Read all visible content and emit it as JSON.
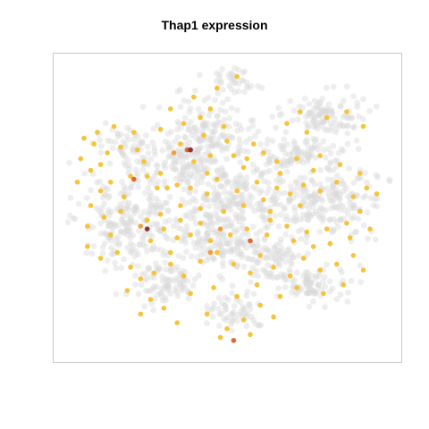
{
  "chart_data": {
    "type": "scatter",
    "title": "Thap1 expression",
    "xlabel": "",
    "ylabel": "",
    "grid": false,
    "legend": "none",
    "axes_shown": false,
    "colors": {
      "background_cells": "#d9d9d9",
      "low": "#f6c02e",
      "mid": "#f29a2c",
      "high": "#d8622a",
      "max": "#8b2a2a",
      "frame": "#c8c8c8"
    },
    "background_regions": [
      {
        "cx": 0.53,
        "cy": 0.86,
        "rx": 0.08,
        "ry": 0.06,
        "n": 60
      },
      {
        "cx": 0.31,
        "cy": 0.76,
        "rx": 0.09,
        "ry": 0.07,
        "n": 90
      },
      {
        "cx": 0.75,
        "cy": 0.77,
        "rx": 0.1,
        "ry": 0.06,
        "n": 90
      },
      {
        "cx": 0.47,
        "cy": 0.63,
        "rx": 0.12,
        "ry": 0.06,
        "n": 110
      },
      {
        "cx": 0.2,
        "cy": 0.55,
        "rx": 0.14,
        "ry": 0.14,
        "n": 220
      },
      {
        "cx": 0.5,
        "cy": 0.48,
        "rx": 0.2,
        "ry": 0.12,
        "n": 260
      },
      {
        "cx": 0.8,
        "cy": 0.48,
        "rx": 0.16,
        "ry": 0.12,
        "n": 200
      },
      {
        "cx": 0.45,
        "cy": 0.25,
        "rx": 0.13,
        "ry": 0.09,
        "n": 150
      },
      {
        "cx": 0.8,
        "cy": 0.19,
        "rx": 0.1,
        "ry": 0.07,
        "n": 110
      },
      {
        "cx": 0.7,
        "cy": 0.32,
        "rx": 0.12,
        "ry": 0.06,
        "n": 90
      },
      {
        "cx": 0.52,
        "cy": 0.08,
        "rx": 0.07,
        "ry": 0.04,
        "n": 40
      },
      {
        "cx": 0.38,
        "cy": 0.36,
        "rx": 0.1,
        "ry": 0.06,
        "n": 80
      },
      {
        "cx": 0.2,
        "cy": 0.3,
        "rx": 0.08,
        "ry": 0.08,
        "n": 70
      },
      {
        "cx": 0.62,
        "cy": 0.68,
        "rx": 0.1,
        "ry": 0.07,
        "n": 90
      }
    ],
    "expressing_cells": [
      [
        0.53,
        0.06,
        1
      ],
      [
        0.47,
        0.1,
        1
      ],
      [
        0.4,
        0.13,
        1
      ],
      [
        0.33,
        0.17,
        1
      ],
      [
        0.42,
        0.2,
        1
      ],
      [
        0.49,
        0.23,
        1
      ],
      [
        0.43,
        0.26,
        1
      ],
      [
        0.36,
        0.29,
        1
      ],
      [
        0.38,
        0.31,
        3
      ],
      [
        0.39,
        0.31,
        4
      ],
      [
        0.34,
        0.32,
        2
      ],
      [
        0.45,
        0.33,
        1
      ],
      [
        0.52,
        0.33,
        1
      ],
      [
        0.56,
        0.34,
        1
      ],
      [
        0.61,
        0.32,
        1
      ],
      [
        0.65,
        0.35,
        1
      ],
      [
        0.71,
        0.34,
        1
      ],
      [
        0.78,
        0.33,
        1
      ],
      [
        0.74,
        0.25,
        1
      ],
      [
        0.8,
        0.2,
        1
      ],
      [
        0.86,
        0.18,
        1
      ],
      [
        0.91,
        0.23,
        1
      ],
      [
        0.72,
        0.18,
        1
      ],
      [
        0.68,
        0.22,
        1
      ],
      [
        0.07,
        0.27,
        1
      ],
      [
        0.1,
        0.29,
        1
      ],
      [
        0.14,
        0.32,
        1
      ],
      [
        0.18,
        0.3,
        1
      ],
      [
        0.23,
        0.31,
        1
      ],
      [
        0.06,
        0.34,
        1
      ],
      [
        0.09,
        0.38,
        1
      ],
      [
        0.12,
        0.36,
        1
      ],
      [
        0.15,
        0.42,
        1
      ],
      [
        0.21,
        0.4,
        1
      ],
      [
        0.22,
        0.41,
        3
      ],
      [
        0.26,
        0.4,
        1
      ],
      [
        0.29,
        0.44,
        1
      ],
      [
        0.32,
        0.44,
        1
      ],
      [
        0.35,
        0.43,
        1
      ],
      [
        0.39,
        0.44,
        1
      ],
      [
        0.44,
        0.46,
        1
      ],
      [
        0.47,
        0.41,
        1
      ],
      [
        0.53,
        0.45,
        1
      ],
      [
        0.59,
        0.42,
        1
      ],
      [
        0.65,
        0.44,
        1
      ],
      [
        0.69,
        0.46,
        1
      ],
      [
        0.73,
        0.43,
        1
      ],
      [
        0.78,
        0.45,
        1
      ],
      [
        0.83,
        0.42,
        1
      ],
      [
        0.88,
        0.47,
        1
      ],
      [
        0.92,
        0.44,
        1
      ],
      [
        0.95,
        0.46,
        1
      ],
      [
        0.61,
        0.48,
        1
      ],
      [
        0.55,
        0.5,
        1
      ],
      [
        0.49,
        0.52,
        1
      ],
      [
        0.42,
        0.51,
        1
      ],
      [
        0.36,
        0.5,
        1
      ],
      [
        0.3,
        0.53,
        1
      ],
      [
        0.26,
        0.55,
        1
      ],
      [
        0.26,
        0.58,
        4
      ],
      [
        0.24,
        0.57,
        2
      ],
      [
        0.31,
        0.58,
        1
      ],
      [
        0.35,
        0.61,
        1
      ],
      [
        0.39,
        0.6,
        1
      ],
      [
        0.45,
        0.62,
        1
      ],
      [
        0.51,
        0.6,
        1
      ],
      [
        0.56,
        0.58,
        1
      ],
      [
        0.62,
        0.6,
        1
      ],
      [
        0.68,
        0.57,
        1
      ],
      [
        0.74,
        0.59,
        1
      ],
      [
        0.8,
        0.58,
        1
      ],
      [
        0.86,
        0.56,
        1
      ],
      [
        0.9,
        0.52,
        1
      ],
      [
        0.09,
        0.5,
        1
      ],
      [
        0.13,
        0.54,
        1
      ],
      [
        0.18,
        0.52,
        1
      ],
      [
        0.08,
        0.64,
        1
      ],
      [
        0.12,
        0.68,
        1
      ],
      [
        0.17,
        0.66,
        1
      ],
      [
        0.21,
        0.71,
        1
      ],
      [
        0.24,
        0.75,
        1
      ],
      [
        0.28,
        0.73,
        1
      ],
      [
        0.33,
        0.7,
        1
      ],
      [
        0.37,
        0.74,
        1
      ],
      [
        0.42,
        0.69,
        1
      ],
      [
        0.47,
        0.66,
        1
      ],
      [
        0.52,
        0.7,
        1
      ],
      [
        0.57,
        0.73,
        1
      ],
      [
        0.6,
        0.67,
        1
      ],
      [
        0.64,
        0.71,
        1
      ],
      [
        0.69,
        0.74,
        1
      ],
      [
        0.73,
        0.68,
        1
      ],
      [
        0.78,
        0.72,
        1
      ],
      [
        0.83,
        0.7,
        1
      ],
      [
        0.88,
        0.67,
        1
      ],
      [
        0.91,
        0.72,
        1
      ],
      [
        0.85,
        0.77,
        1
      ],
      [
        0.79,
        0.8,
        1
      ],
      [
        0.71,
        0.78,
        1
      ],
      [
        0.66,
        0.81,
        1
      ],
      [
        0.6,
        0.84,
        1
      ],
      [
        0.55,
        0.89,
        1
      ],
      [
        0.5,
        0.92,
        1
      ],
      [
        0.48,
        0.95,
        1
      ],
      [
        0.52,
        0.96,
        3
      ],
      [
        0.57,
        0.94,
        1
      ],
      [
        0.45,
        0.66,
        2
      ],
      [
        0.57,
        0.62,
        3
      ],
      [
        0.48,
        0.58,
        2
      ],
      [
        0.63,
        0.52,
        1
      ],
      [
        0.72,
        0.5,
        1
      ],
      [
        0.33,
        0.66,
        1
      ],
      [
        0.27,
        0.62,
        1
      ],
      [
        0.15,
        0.6,
        1
      ],
      [
        0.44,
        0.39,
        1
      ],
      [
        0.55,
        0.37,
        1
      ],
      [
        0.4,
        0.35,
        1
      ],
      [
        0.25,
        0.35,
        1
      ],
      [
        0.3,
        0.39,
        1
      ],
      [
        0.12,
        0.45,
        1
      ],
      [
        0.05,
        0.42,
        1
      ],
      [
        0.76,
        0.38,
        1
      ],
      [
        0.84,
        0.36,
        1
      ],
      [
        0.9,
        0.39,
        1
      ],
      [
        0.66,
        0.39,
        1
      ],
      [
        0.58,
        0.29,
        1
      ],
      [
        0.5,
        0.28,
        1
      ],
      [
        0.45,
        0.17,
        1
      ],
      [
        0.37,
        0.22,
        1
      ],
      [
        0.3,
        0.24,
        1
      ],
      [
        0.22,
        0.25,
        1
      ],
      [
        0.16,
        0.23,
        1
      ],
      [
        0.11,
        0.25,
        1
      ],
      [
        0.63,
        0.55,
        1
      ],
      [
        0.7,
        0.62,
        1
      ],
      [
        0.76,
        0.64,
        1
      ],
      [
        0.81,
        0.63,
        1
      ],
      [
        0.87,
        0.61,
        1
      ],
      [
        0.93,
        0.58,
        1
      ],
      [
        0.42,
        0.56,
        1
      ],
      [
        0.36,
        0.55,
        1
      ],
      [
        0.19,
        0.47,
        1
      ],
      [
        0.08,
        0.57,
        1
      ],
      [
        0.2,
        0.79,
        1
      ],
      [
        0.27,
        0.82,
        1
      ],
      [
        0.31,
        0.85,
        1
      ],
      [
        0.39,
        0.8,
        1
      ],
      [
        0.46,
        0.78,
        1
      ],
      [
        0.53,
        0.81,
        1
      ],
      [
        0.59,
        0.77,
        1
      ],
      [
        0.64,
        0.88,
        1
      ],
      [
        0.44,
        0.87,
        1
      ],
      [
        0.35,
        0.9,
        1
      ],
      [
        0.24,
        0.87,
        1
      ]
    ]
  }
}
